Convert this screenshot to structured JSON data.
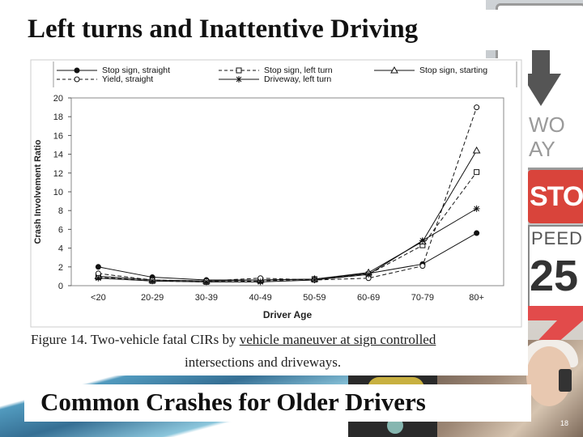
{
  "slide": {
    "title": "Left turns and Inattentive Driving",
    "subtitle": "Common Crashes for Older Drivers",
    "slide_number": "18",
    "background_signs": {
      "one_way_text_line1": "WO",
      "one_way_text_line2": "AY",
      "stop_text": "STOP",
      "speed_text": "PEED",
      "speed_number": "25"
    }
  },
  "figure": {
    "caption_prefix": "Figure 14.  Two-vehicle fatal CIRs by ",
    "caption_underlined": "vehicle maneuver at sign controlled",
    "caption_line2": "intersections and driveways."
  },
  "chart_data": {
    "type": "line",
    "title": "",
    "xlabel": "Driver Age",
    "ylabel": "Crash Involvement Ratio",
    "categories": [
      "<20",
      "20-29",
      "30-39",
      "40-49",
      "50-59",
      "60-69",
      "70-79",
      "80+"
    ],
    "ylim": [
      0,
      20
    ],
    "yticks": [
      0,
      2,
      4,
      6,
      8,
      10,
      12,
      14,
      16,
      18,
      20
    ],
    "grid": false,
    "legend_position": "top",
    "series": [
      {
        "name": "Stop sign, straight",
        "marker": "filled-circle",
        "dash": "solid",
        "values": [
          2.0,
          0.9,
          0.6,
          0.6,
          0.7,
          1.3,
          2.3,
          5.6
        ]
      },
      {
        "name": "Stop sign, left turn",
        "marker": "square",
        "dash": "dashed",
        "values": [
          0.9,
          0.5,
          0.4,
          0.5,
          0.7,
          1.2,
          4.3,
          12.1
        ]
      },
      {
        "name": "Stop sign, starting",
        "marker": "triangle",
        "dash": "solid",
        "values": [
          1.0,
          0.6,
          0.5,
          0.6,
          0.7,
          1.4,
          4.7,
          14.4
        ]
      },
      {
        "name": "Yield, straight",
        "marker": "open-circle",
        "dash": "dashed",
        "values": [
          1.3,
          0.6,
          0.5,
          0.8,
          0.6,
          0.8,
          2.1,
          19.0
        ]
      },
      {
        "name": "Driveway, left turn",
        "marker": "asterisk",
        "dash": "solid",
        "values": [
          0.8,
          0.5,
          0.4,
          0.4,
          0.6,
          1.2,
          4.8,
          8.2
        ]
      }
    ]
  }
}
